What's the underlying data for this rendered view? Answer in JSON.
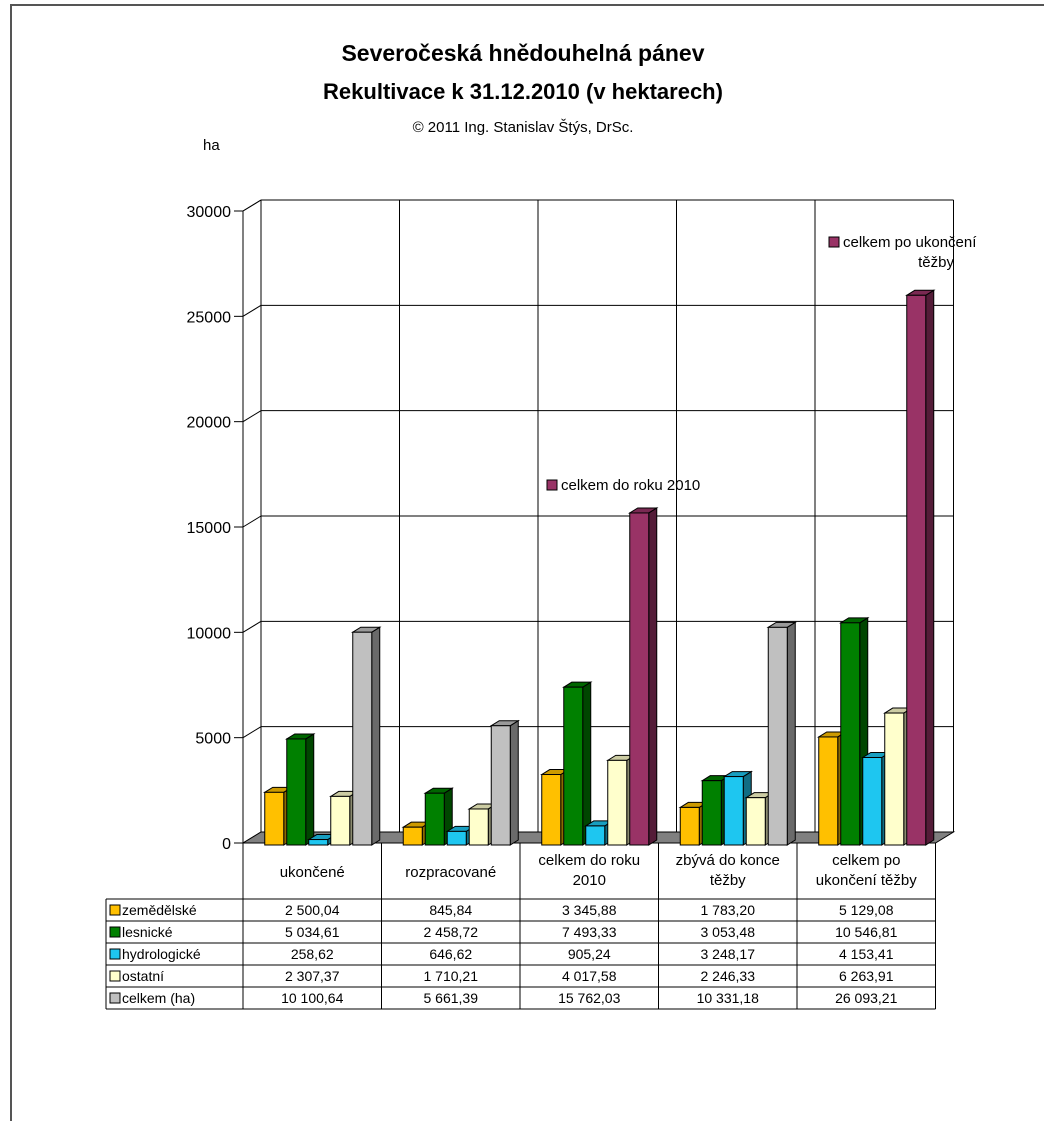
{
  "chart_data": {
    "type": "bar",
    "title": "Severočeská hnědouhelná pánev",
    "subtitle": "Rekultivace k 31.12.2010 (v hektarech)",
    "credit": "© 2011 Ing. Stanislav Štýs, DrSc.",
    "ylabel": "ha",
    "ylim": [
      0,
      30000
    ],
    "yticks": [
      "0",
      "5000",
      "10000",
      "15000",
      "20000",
      "25000",
      "30000"
    ],
    "categories": [
      [
        "ukončené"
      ],
      [
        "rozpracované"
      ],
      [
        "celkem do roku",
        "2010"
      ],
      [
        "zbývá do konce",
        "těžby"
      ],
      [
        "celkem po",
        "ukončení těžby"
      ]
    ],
    "series": [
      {
        "name": "zemědělské",
        "color": "#FFC000",
        "values": [
          2500.04,
          845.84,
          3345.88,
          1783.2,
          5129.08
        ],
        "labels": [
          "2 500,04",
          "845,84",
          "3 345,88",
          "1 783,20",
          "5 129,08"
        ]
      },
      {
        "name": "lesnické",
        "color": "#008000",
        "values": [
          5034.61,
          2458.72,
          7493.33,
          3053.48,
          10546.81
        ],
        "labels": [
          "5 034,61",
          "2 458,72",
          "7 493,33",
          "3 053,48",
          "10 546,81"
        ]
      },
      {
        "name": "hydrologické",
        "color": "#1EC6F0",
        "values": [
          258.62,
          646.62,
          905.24,
          3248.17,
          4153.41
        ],
        "labels": [
          "258,62",
          "646,62",
          "905,24",
          "3 248,17",
          "4 153,41"
        ]
      },
      {
        "name": "ostatní",
        "color": "#FFFFCC",
        "values": [
          2307.37,
          1710.21,
          4017.58,
          2246.33,
          6263.91
        ],
        "labels": [
          "2 307,37",
          "1 710,21",
          "4 017,58",
          "2 246,33",
          "6 263,91"
        ]
      },
      {
        "name": "celkem (ha)",
        "color": "#C0C0C0",
        "values": [
          10100.64,
          5661.39,
          15762.03,
          10331.18,
          26093.21
        ],
        "labels": [
          "10 100,64",
          "5 661,39",
          "15 762,03",
          "10 331,18",
          "26 093,21"
        ]
      }
    ],
    "highlight_color": "#993366",
    "annotations": [
      {
        "category_index": 2,
        "lines": [
          "celkem do roku 2010"
        ]
      },
      {
        "category_index": 4,
        "lines": [
          "celkem po ukončení",
          "těžby"
        ]
      }
    ],
    "grid": true
  }
}
